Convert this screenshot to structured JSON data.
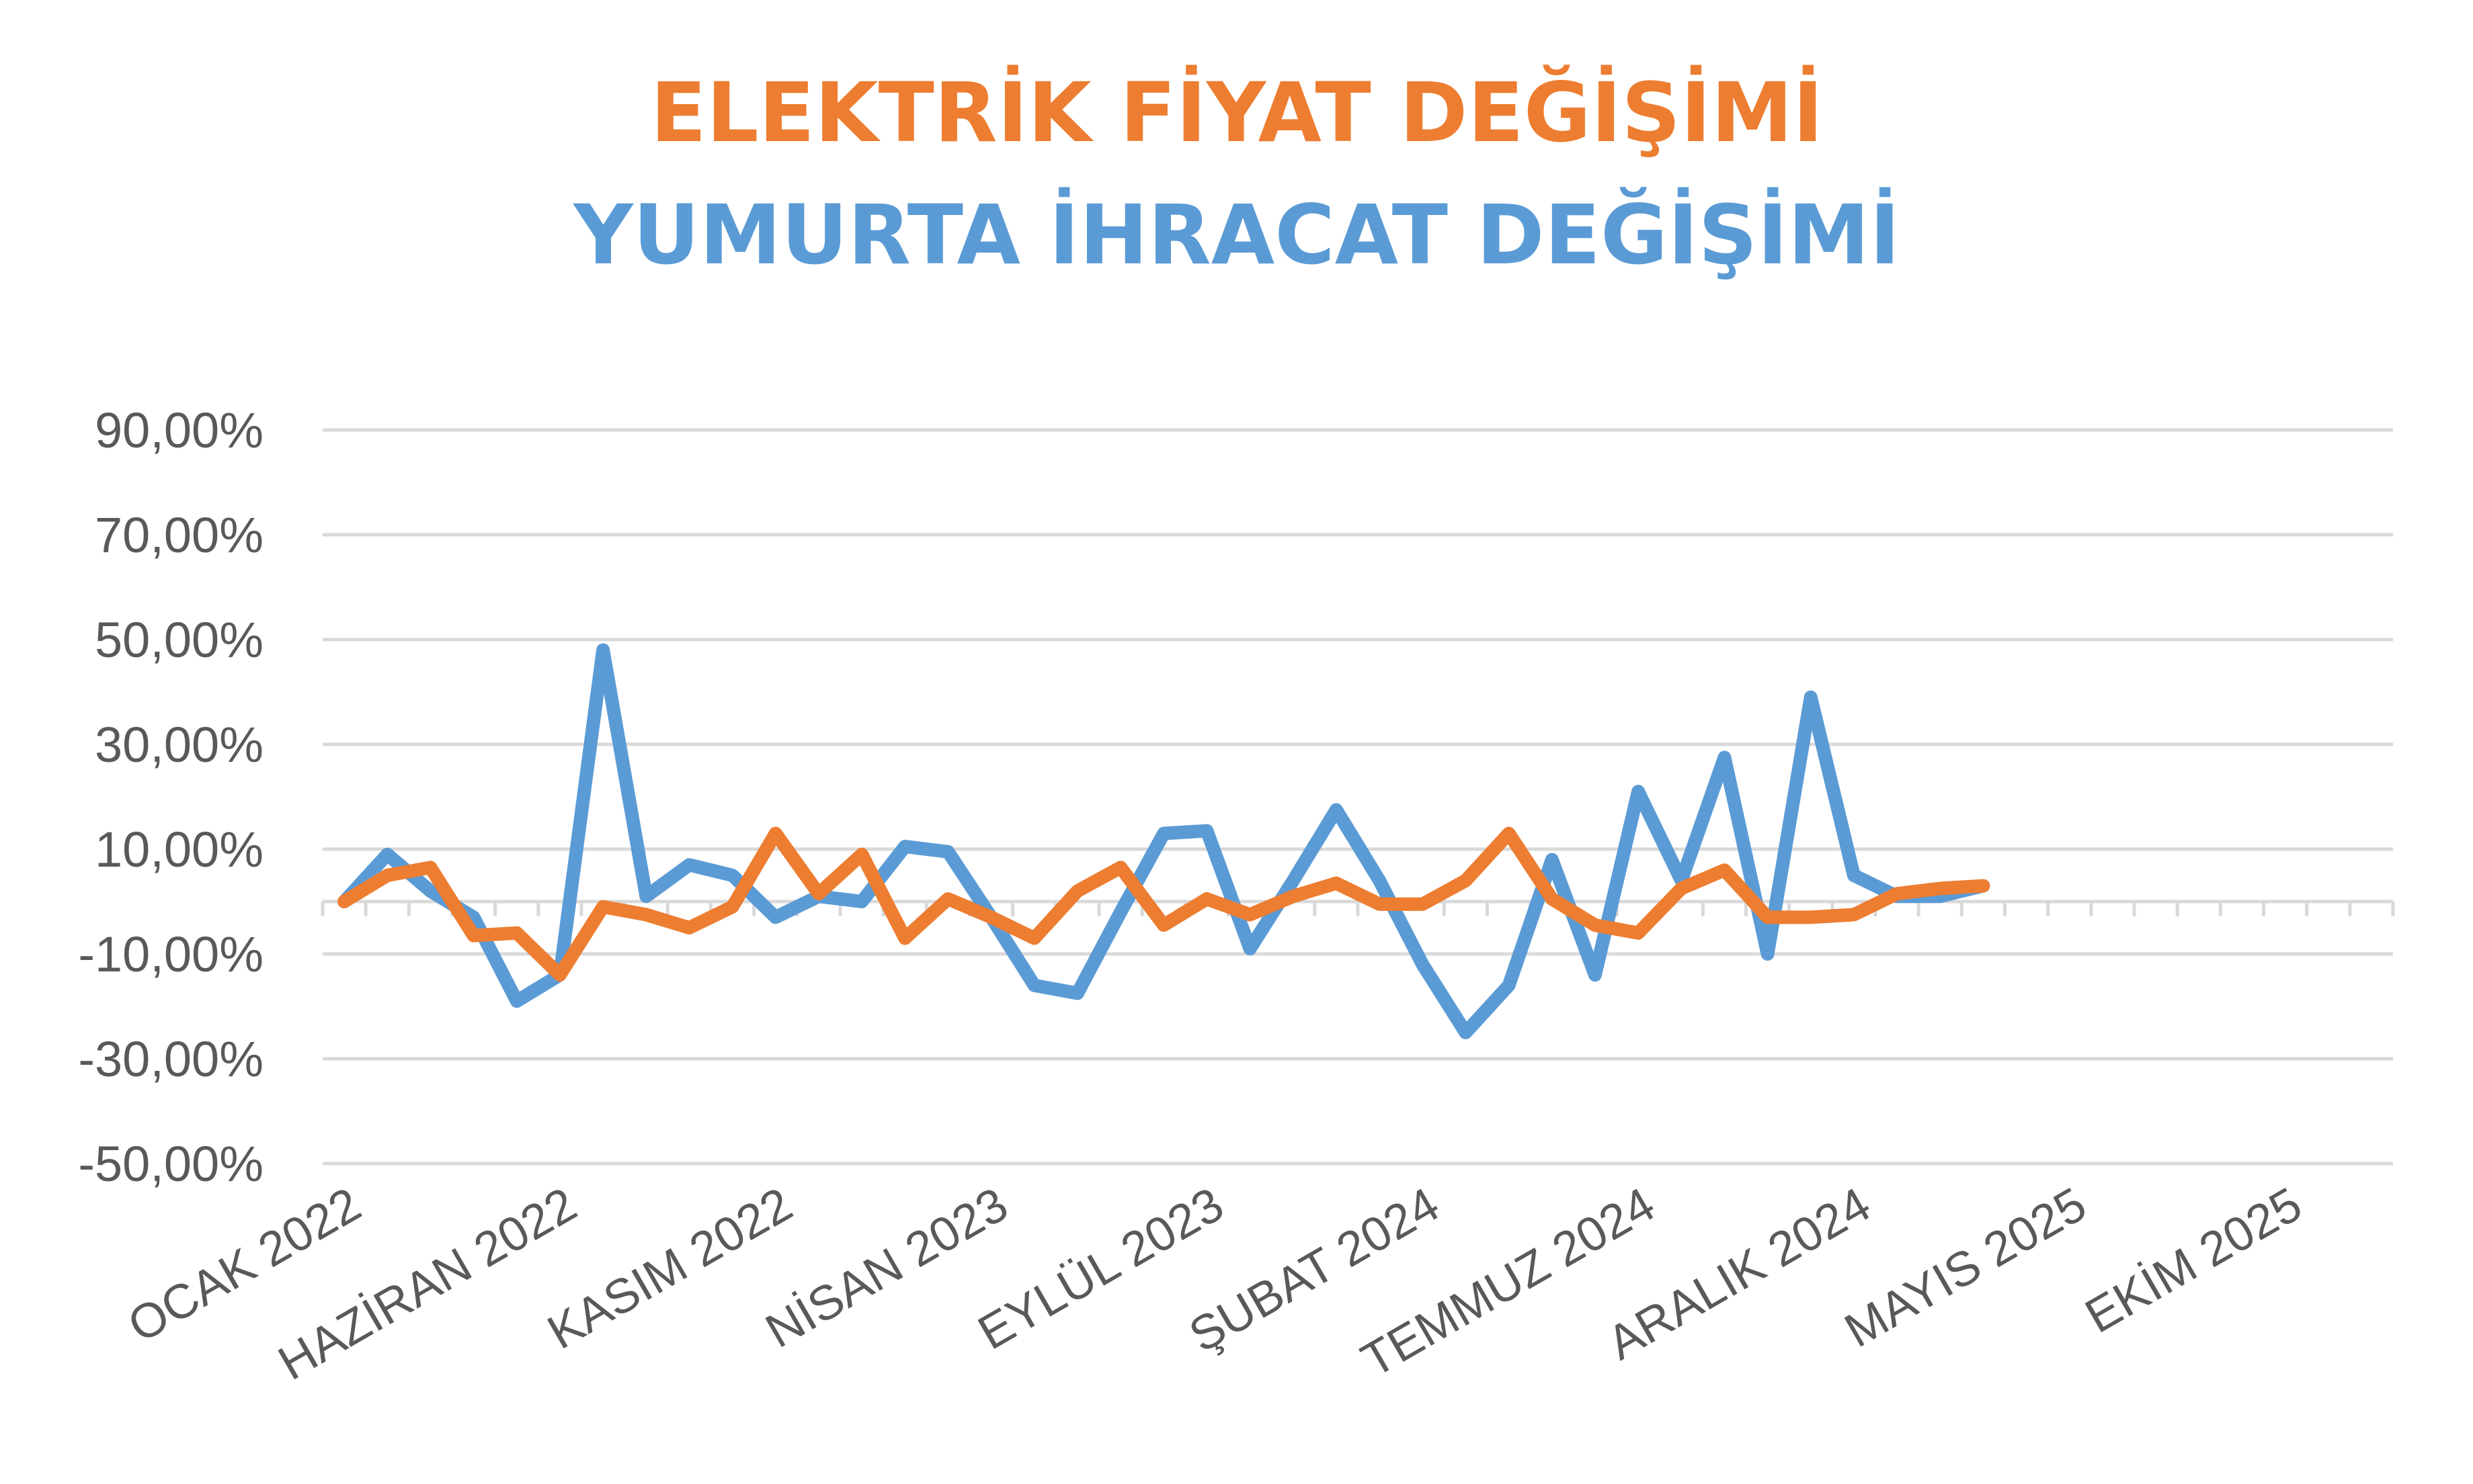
{
  "chart_data": {
    "type": "line",
    "title": "ELEKTRİK FİYAT DEĞİŞİMİ",
    "subtitle": "YUMURTA İHRACAT DEĞİŞİMİ",
    "title_color": "#ED7D31",
    "subtitle_color": "#5B9BD5",
    "ylim": [
      -50,
      90
    ],
    "yticks": [
      -50,
      -30,
      -10,
      10,
      30,
      50,
      70,
      90
    ],
    "ytick_labels": [
      "-50,00%",
      "-30,00%",
      "-10,00%",
      "10,00%",
      "30,00%",
      "50,00%",
      "70,00%",
      "90,00%"
    ],
    "x_months": 48,
    "xtick_labels": [
      "OCAK 2022",
      "HAZİRAN 2022",
      "KASIM 2022",
      "NİSAN 2023",
      "EYLÜL 2023",
      "ŞUBAT 2024",
      "TEMMUZ 2024",
      "ARALIK 2024",
      "MAYIS 2025",
      "EKİM 2025"
    ],
    "grid": true,
    "series": [
      {
        "color": "#5B9BD5",
        "values": [
          0,
          9,
          2,
          -3,
          -19,
          -14,
          48,
          1,
          7,
          5,
          -3,
          1,
          0,
          10.5,
          9.5,
          -3,
          -16,
          -17.5,
          -2,
          13,
          13.5,
          -9,
          4,
          17.5,
          4,
          -12,
          -25,
          -16,
          8,
          -14,
          21,
          4,
          27.5,
          -10,
          39,
          5,
          1,
          1,
          3
        ]
      },
      {
        "color": "#ED7D31",
        "values": [
          0,
          5,
          6.5,
          -6.5,
          -6,
          -14,
          -1,
          -2.5,
          -5,
          -1,
          13,
          1.5,
          9,
          -7,
          0.5,
          -3,
          -7,
          2,
          6.5,
          -4.5,
          0.5,
          -2.5,
          1,
          3.5,
          -0.5,
          -0.5,
          4,
          13,
          0.5,
          -4.5,
          -6,
          2.5,
          6,
          -3,
          -3,
          -2.5,
          1.5,
          2.5,
          3
        ]
      }
    ]
  }
}
